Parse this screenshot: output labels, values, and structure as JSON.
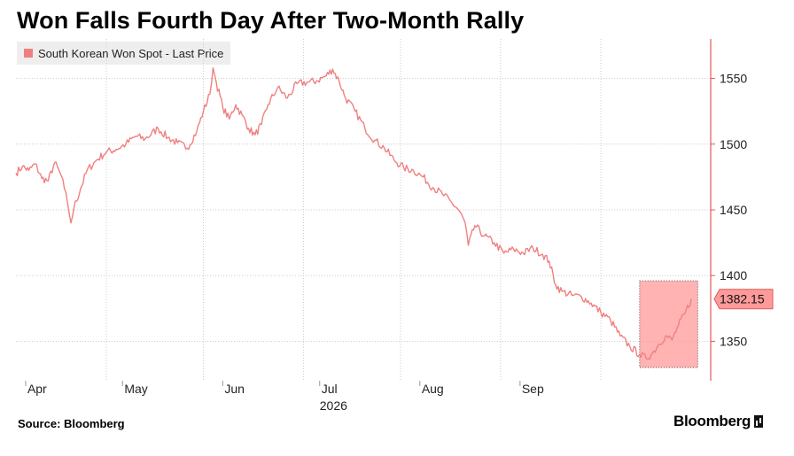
{
  "title": "Won Falls Fourth Day After Two-Month Rally",
  "source": "Source: Bloomberg",
  "brand": "Bloomberg",
  "colors": {
    "series": "#f08080",
    "axis": "#e05a5a",
    "grid": "#cccccc",
    "highlight": "#ff9a9a"
  },
  "chart_data": {
    "type": "line",
    "title": "Won Falls Fourth Day After Two-Month Rally",
    "xlabel": "2026",
    "ylabel": "",
    "ylim": [
      1320,
      1580
    ],
    "y_ticks": [
      1350,
      1400,
      1450,
      1500,
      1550
    ],
    "x_ticks": [
      {
        "label": "Apr",
        "date": "2026-04-01"
      },
      {
        "label": "May",
        "date": "2026-05-01"
      },
      {
        "label": "Jun",
        "date": "2026-06-01"
      },
      {
        "label": "Jul",
        "date": "2026-07-01"
      },
      {
        "label": "Aug",
        "date": "2026-08-01"
      },
      {
        "label": "Sep",
        "date": "2026-09-01"
      }
    ],
    "year_label": "2026",
    "series": [
      {
        "name": "South Korean Won Spot - Last Price",
        "points": [
          [
            "2026-03-29",
            1478
          ],
          [
            "2026-03-31",
            1483
          ],
          [
            "2026-04-02",
            1480
          ],
          [
            "2026-04-04",
            1485
          ],
          [
            "2026-04-06",
            1474
          ],
          [
            "2026-04-08",
            1472
          ],
          [
            "2026-04-10",
            1486
          ],
          [
            "2026-04-12",
            1476
          ],
          [
            "2026-04-13",
            1466
          ],
          [
            "2026-04-14",
            1455
          ],
          [
            "2026-04-15",
            1440
          ],
          [
            "2026-04-16",
            1452
          ],
          [
            "2026-04-18",
            1466
          ],
          [
            "2026-04-20",
            1480
          ],
          [
            "2026-04-23",
            1488
          ],
          [
            "2026-04-26",
            1494
          ],
          [
            "2026-04-29",
            1496
          ],
          [
            "2026-05-02",
            1500
          ],
          [
            "2026-05-05",
            1506
          ],
          [
            "2026-05-08",
            1504
          ],
          [
            "2026-05-12",
            1512
          ],
          [
            "2026-05-15",
            1505
          ],
          [
            "2026-05-18",
            1501
          ],
          [
            "2026-05-21",
            1497
          ],
          [
            "2026-05-24",
            1510
          ],
          [
            "2026-05-26",
            1525
          ],
          [
            "2026-05-28",
            1538
          ],
          [
            "2026-05-29",
            1558
          ],
          [
            "2026-05-30",
            1547
          ],
          [
            "2026-06-01",
            1528
          ],
          [
            "2026-06-03",
            1519
          ],
          [
            "2026-06-05",
            1530
          ],
          [
            "2026-06-07",
            1522
          ],
          [
            "2026-06-09",
            1512
          ],
          [
            "2026-06-11",
            1507
          ],
          [
            "2026-06-13",
            1515
          ],
          [
            "2026-06-15",
            1530
          ],
          [
            "2026-06-18",
            1543
          ],
          [
            "2026-06-21",
            1535
          ],
          [
            "2026-06-24",
            1546
          ],
          [
            "2026-06-27",
            1547
          ],
          [
            "2026-06-30",
            1548
          ],
          [
            "2026-07-03",
            1552
          ],
          [
            "2026-07-05",
            1557
          ],
          [
            "2026-07-07",
            1548
          ],
          [
            "2026-07-09",
            1535
          ],
          [
            "2026-07-12",
            1525
          ],
          [
            "2026-07-15",
            1512
          ],
          [
            "2026-07-18",
            1503
          ],
          [
            "2026-07-21",
            1497
          ],
          [
            "2026-07-24",
            1488
          ],
          [
            "2026-07-27",
            1482
          ],
          [
            "2026-07-30",
            1480
          ],
          [
            "2026-08-02",
            1475
          ],
          [
            "2026-08-05",
            1467
          ],
          [
            "2026-08-08",
            1462
          ],
          [
            "2026-08-11",
            1455
          ],
          [
            "2026-08-13",
            1450
          ],
          [
            "2026-08-15",
            1440
          ],
          [
            "2026-08-16",
            1423
          ],
          [
            "2026-08-18",
            1438
          ],
          [
            "2026-08-21",
            1430
          ],
          [
            "2026-08-24",
            1425
          ],
          [
            "2026-08-27",
            1417
          ],
          [
            "2026-08-30",
            1420
          ],
          [
            "2026-09-02",
            1417
          ],
          [
            "2026-09-05",
            1421
          ],
          [
            "2026-09-08",
            1416
          ],
          [
            "2026-09-10",
            1411
          ],
          [
            "2026-09-12",
            1393
          ],
          [
            "2026-09-14",
            1388
          ],
          [
            "2026-09-17",
            1385
          ],
          [
            "2026-09-20",
            1384
          ],
          [
            "2026-09-23",
            1379
          ],
          [
            "2026-09-26",
            1372
          ],
          [
            "2026-09-29",
            1366
          ],
          [
            "2026-10-02",
            1354
          ],
          [
            "2026-10-05",
            1346
          ],
          [
            "2026-10-08",
            1340
          ],
          [
            "2026-10-10",
            1337
          ],
          [
            "2026-10-12",
            1341
          ],
          [
            "2026-10-14",
            1348
          ],
          [
            "2026-10-16",
            1354
          ],
          [
            "2026-10-18",
            1351
          ],
          [
            "2026-10-20",
            1362
          ],
          [
            "2026-10-22",
            1371
          ],
          [
            "2026-10-24",
            1382.15
          ]
        ]
      }
    ],
    "last_value_label": "1382.15",
    "highlight_range": {
      "x_start": "2026-10-08",
      "x_end": "2026-10-26",
      "y_low": 1330,
      "y_high": 1396
    },
    "grid": true,
    "legend_position": "top-left",
    "y_axis_side": "right"
  }
}
